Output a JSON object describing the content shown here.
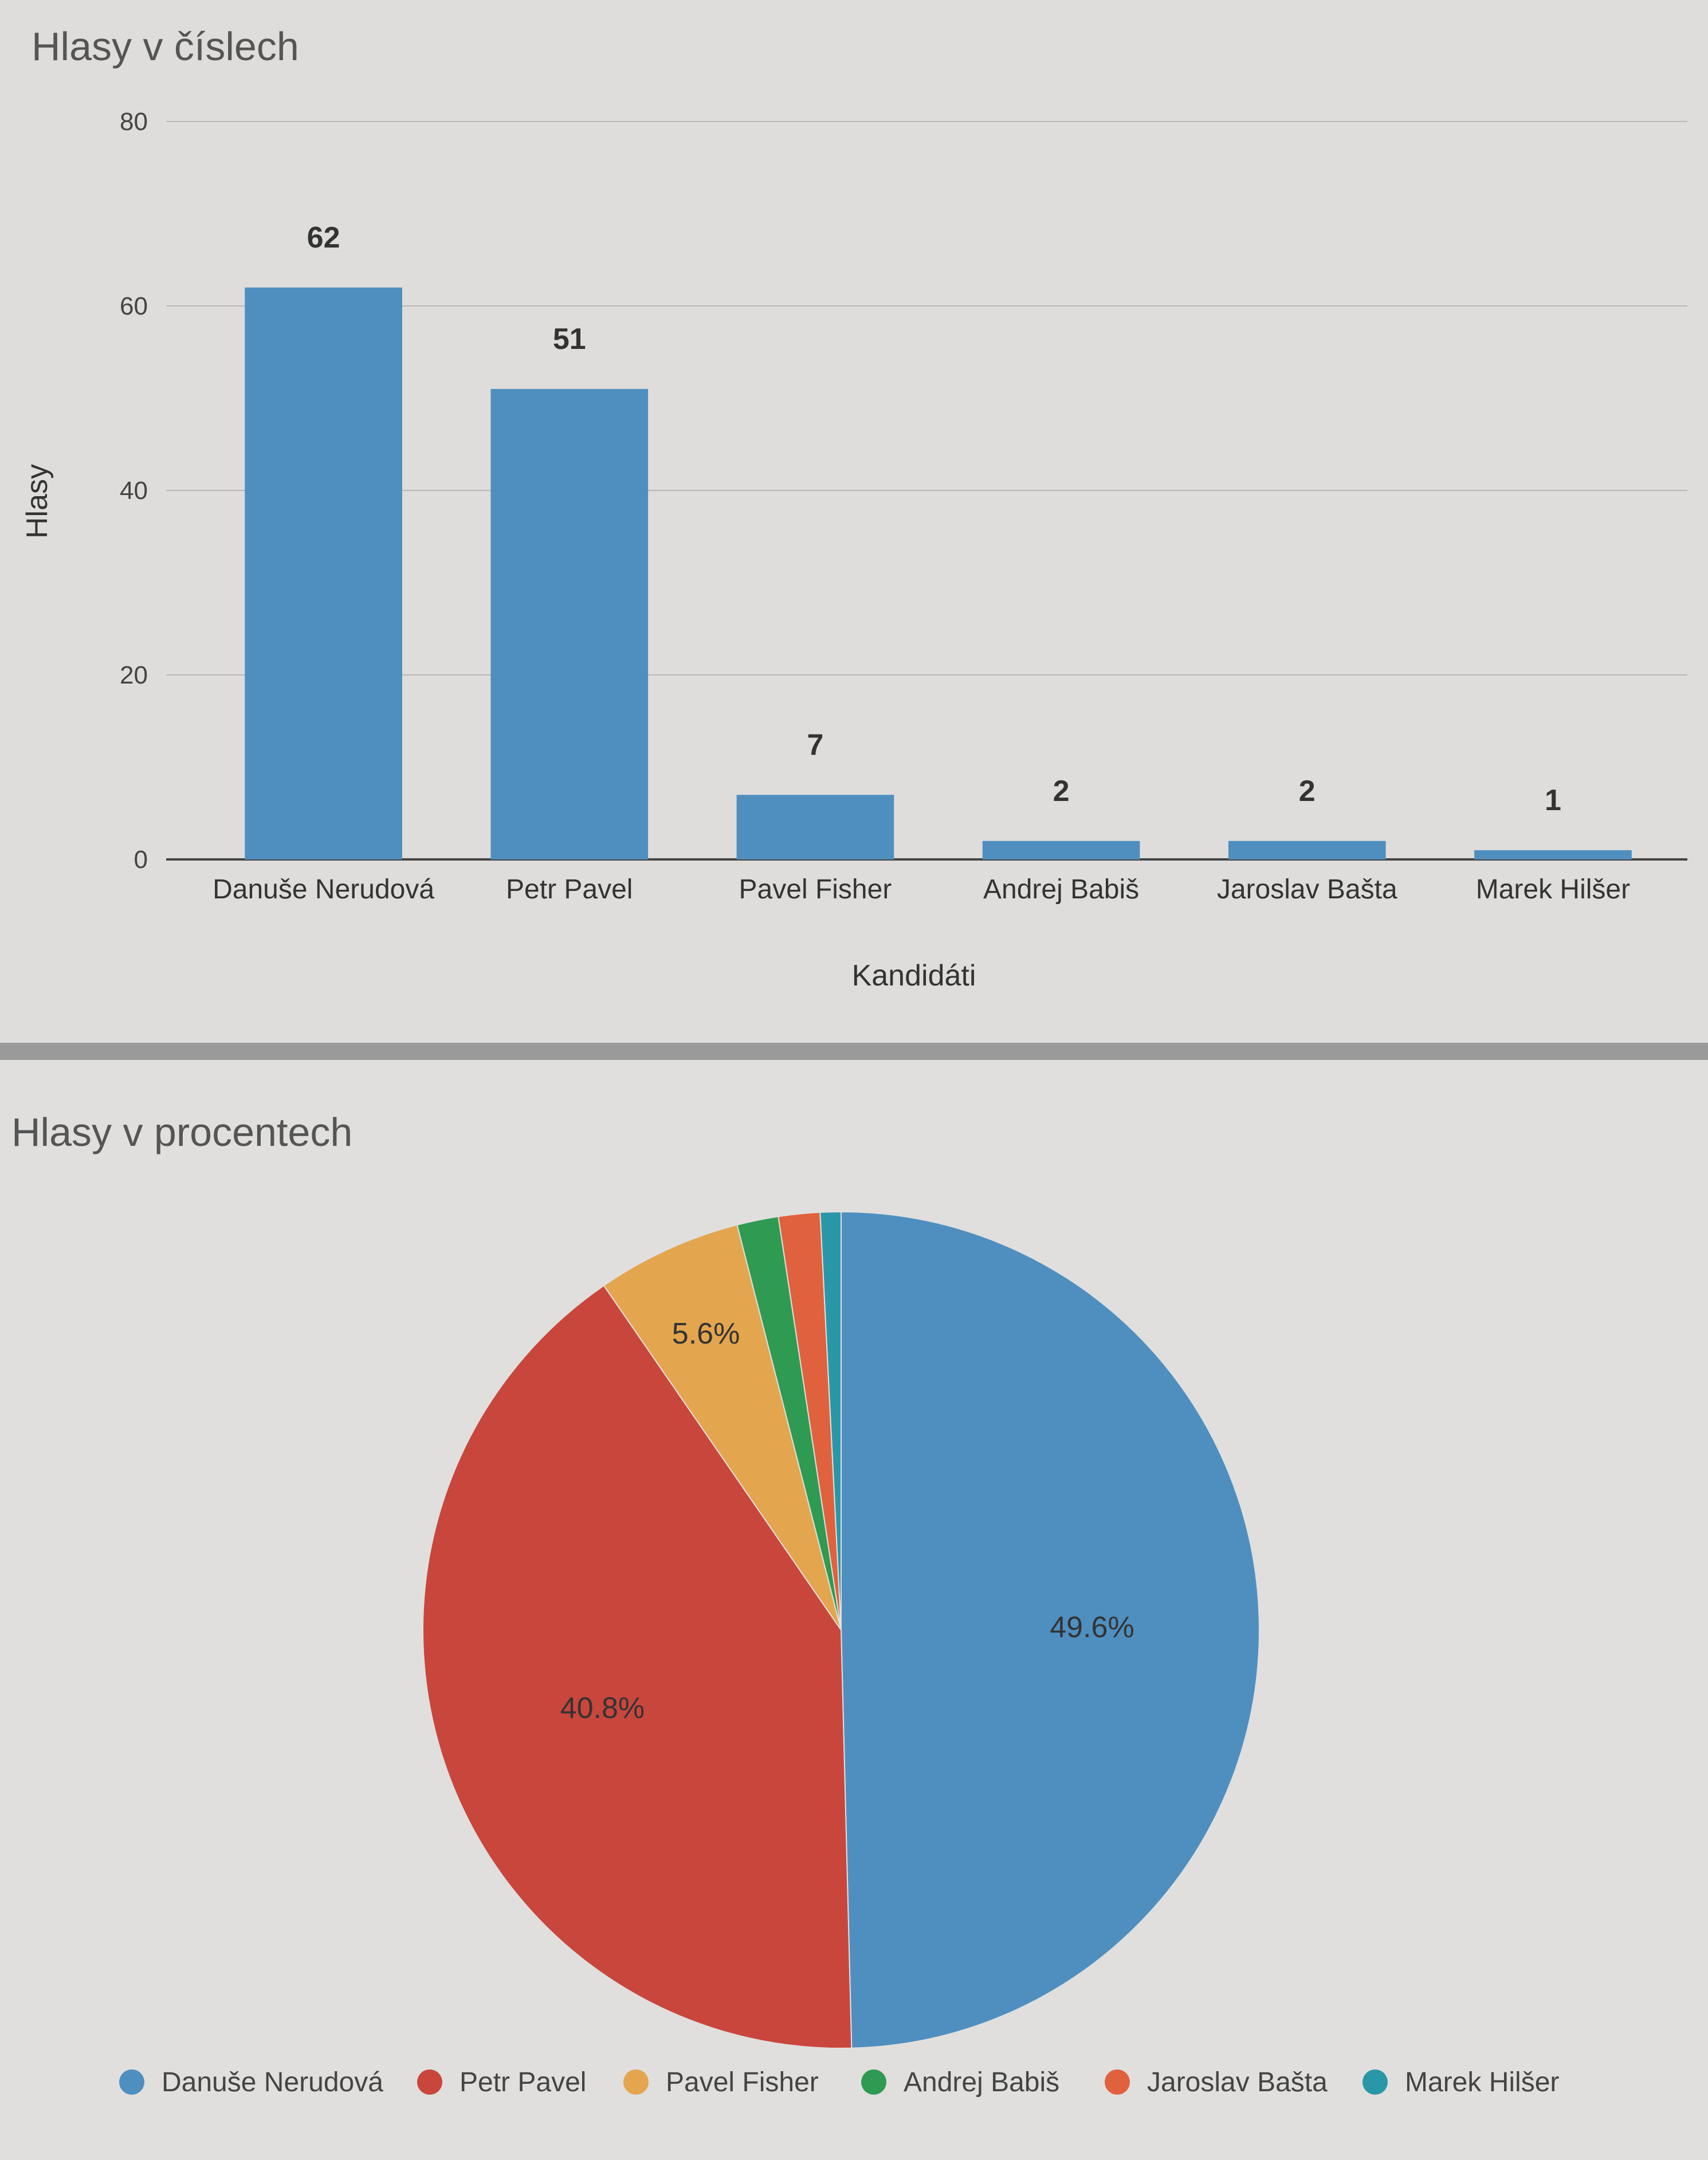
{
  "bar_chart_title": "Hlasy v číslech",
  "pie_chart_title": "Hlasy v procentech",
  "colors": {
    "bar": "#4f8fc0",
    "pie": [
      "#4f8fc0",
      "#c9463d",
      "#e3a54e",
      "#2e9a52",
      "#e0613d",
      "#2a97a8"
    ]
  },
  "chart_data": [
    {
      "type": "bar",
      "title": "Hlasy v číslech",
      "categories": [
        "Danuše Nerudová",
        "Petr Pavel",
        "Pavel Fisher",
        "Andrej Babiš",
        "Jaroslav Bašta",
        "Marek Hilšer"
      ],
      "values": [
        62,
        51,
        7,
        2,
        2,
        1
      ],
      "data_labels": [
        "62",
        "51",
        "7",
        "2",
        "2",
        "1"
      ],
      "xlabel": "Kandidáti",
      "ylabel": "Hlasy",
      "ylim": [
        0,
        80
      ],
      "yticks": [
        "0",
        "20",
        "40",
        "60",
        "80"
      ],
      "grid": true
    },
    {
      "type": "pie",
      "title": "Hlasy v procentech",
      "labels": [
        "Danuše Nerudová",
        "Petr Pavel",
        "Pavel Fisher",
        "Andrej Babiš",
        "Jaroslav Bašta",
        "Marek Hilšer"
      ],
      "values": [
        62,
        51,
        7,
        2,
        2,
        1
      ],
      "slice_labels": [
        "49.6%",
        "40.8%",
        "5.6%",
        "",
        "",
        ""
      ],
      "legend": "bottom"
    }
  ]
}
